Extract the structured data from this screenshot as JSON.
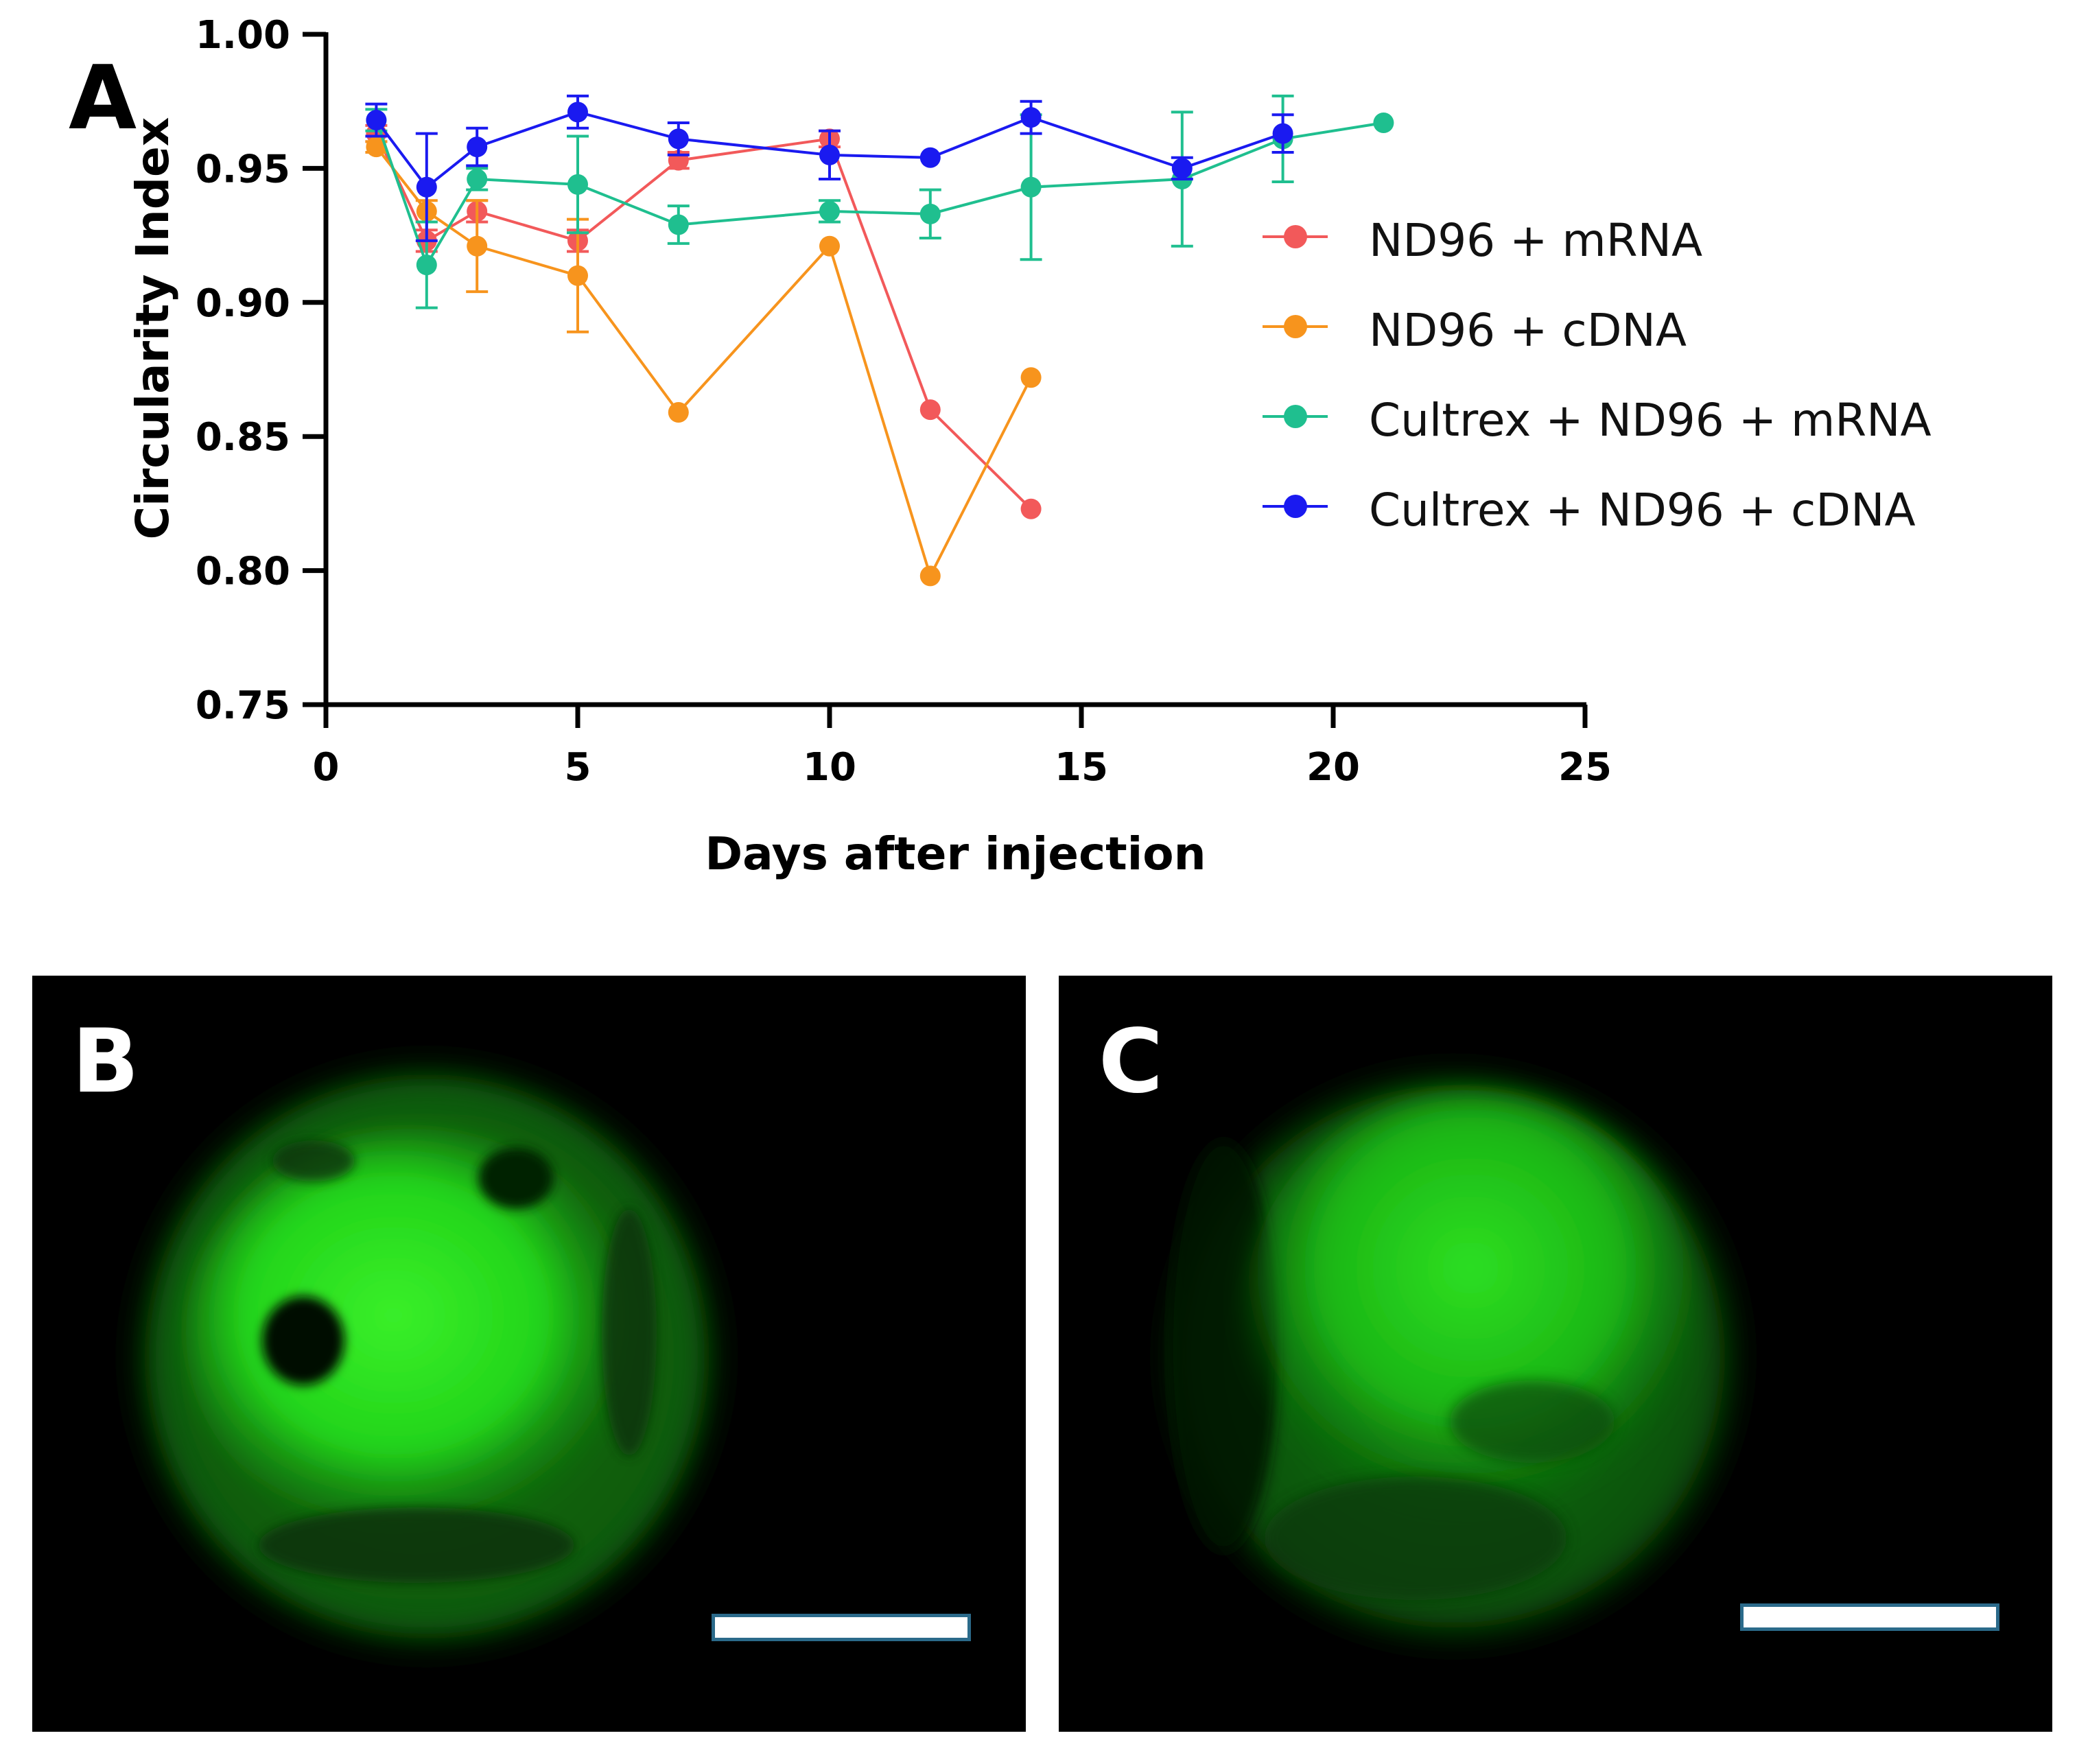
{
  "panels": {
    "a_label": "A",
    "b_label": "B",
    "c_label": "C"
  },
  "colors": {
    "nd96_mrna": "#f2595a",
    "nd96_cdna": "#f7941d",
    "cultrex_mrna": "#1fbf8f",
    "cultrex_cdna": "#1a1af0",
    "fluorescence": "#22e01a",
    "scale_bar_border": "#2b6a8a"
  },
  "chart_data": {
    "type": "line",
    "title": "",
    "xlabel": "Days after injection",
    "ylabel": "Circularity Index",
    "xlim": [
      0,
      25
    ],
    "ylim": [
      0.75,
      1.0
    ],
    "x_ticks": [
      0,
      5,
      10,
      15,
      20,
      25
    ],
    "y_ticks": [
      0.75,
      0.8,
      0.85,
      0.9,
      0.95,
      1.0
    ],
    "x_tick_labels": [
      "0",
      "5",
      "10",
      "15",
      "20",
      "25"
    ],
    "y_tick_labels": [
      "0.75",
      "0.80",
      "0.85",
      "0.90",
      "0.95",
      "1.00"
    ],
    "grid": false,
    "legend_position": "right",
    "series": [
      {
        "name": "ND96 + mRNA",
        "color": "#f2595a",
        "x": [
          1,
          2,
          3,
          5,
          7,
          10,
          12,
          14
        ],
        "y": [
          0.963,
          0.923,
          0.934,
          0.923,
          0.953,
          0.961,
          0.86,
          0.823
        ],
        "err": [
          0.003,
          0.004,
          0.004,
          0.004,
          0.003,
          0.003,
          0,
          0
        ]
      },
      {
        "name": "ND96 + cDNA",
        "color": "#f7941d",
        "x": [
          1,
          2,
          3,
          5,
          7,
          10,
          12,
          14
        ],
        "y": [
          0.958,
          0.934,
          0.921,
          0.91,
          0.859,
          0.921,
          0.798,
          0.872
        ],
        "err": [
          0.002,
          0.004,
          0.017,
          0.021,
          0,
          0,
          0,
          0
        ]
      },
      {
        "name": "Cultrex + ND96 + mRNA",
        "color": "#1fbf8f",
        "x": [
          1,
          2,
          3,
          5,
          7,
          10,
          12,
          14,
          17,
          19,
          21
        ],
        "y": [
          0.968,
          0.914,
          0.946,
          0.944,
          0.929,
          0.934,
          0.933,
          0.943,
          0.946,
          0.961,
          0.967
        ],
        "err": [
          0.004,
          0.016,
          0.004,
          0.018,
          0.007,
          0.004,
          0.009,
          0.027,
          0.025,
          0.016,
          0
        ]
      },
      {
        "name": "Cultrex + ND96 + cDNA",
        "color": "#1a1af0",
        "x": [
          1,
          2,
          3,
          5,
          7,
          10,
          12,
          14,
          17,
          19
        ],
        "y": [
          0.968,
          0.943,
          0.958,
          0.971,
          0.961,
          0.955,
          0.954,
          0.969,
          0.95,
          0.963
        ],
        "err": [
          0.006,
          0.02,
          0.007,
          0.006,
          0.006,
          0.009,
          0,
          0.006,
          0.004,
          0.007
        ]
      }
    ]
  }
}
